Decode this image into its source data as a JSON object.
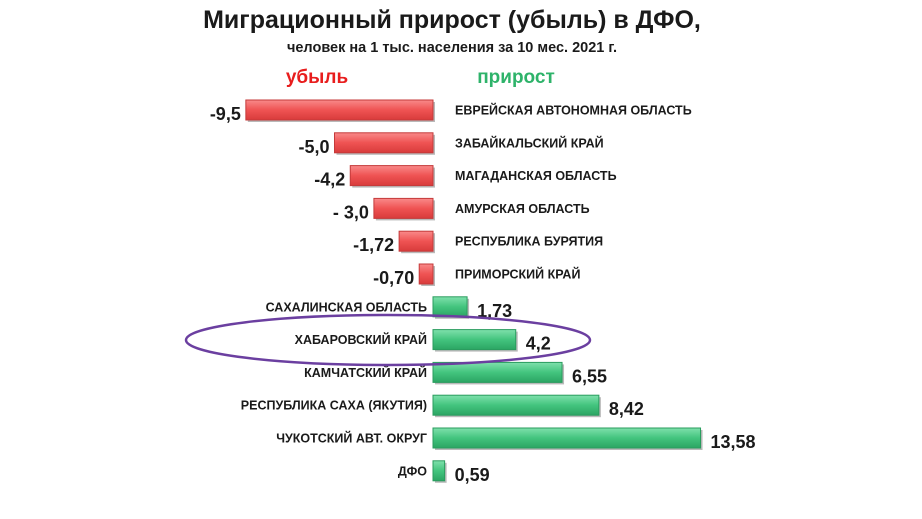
{
  "chart_data": {
    "type": "bar",
    "orientation": "horizontal",
    "title": "Миграционный прирост (убыль) в ДФО,",
    "subtitle": "человек на 1 тыс. населения за 10 мес. 2021 г.",
    "legend": {
      "negative": "убыль",
      "positive": "прирост"
    },
    "categories": [
      "ЕВРЕЙСКАЯ АВТОНОМНАЯ ОБЛАСТЬ",
      "ЗАБАЙКАЛЬСКИЙ КРАЙ",
      "МАГАДАНСКАЯ ОБЛАСТЬ",
      "АМУРСКАЯ ОБЛАСТЬ",
      "РЕСПУБЛИКА БУРЯТИЯ",
      "ПРИМОРСКИЙ КРАЙ",
      "САХАЛИНСКАЯ ОБЛАСТЬ",
      "ХАБАРОВСКИЙ КРАЙ",
      "КАМЧАТСКИЙ КРАЙ",
      "РЕСПУБЛИКА САХА (ЯКУТИЯ)",
      "ЧУКОТСКИЙ АВТ. ОКРУГ",
      "ДФО"
    ],
    "values": [
      -9.5,
      -5.0,
      -4.2,
      -3.0,
      -1.72,
      -0.7,
      1.73,
      4.2,
      6.55,
      8.42,
      13.58,
      0.59
    ],
    "data_labels": [
      "-9,5",
      "-5,0",
      "-4,2",
      "- 3,0",
      "-1,72",
      "-0,70",
      "1,73",
      "4,2",
      "6,55",
      "8,42",
      "13,58",
      "0,59"
    ],
    "highlighted": "ХАБАРОВСКИЙ КРАЙ",
    "colors": {
      "negative_fill": "#f25f5f",
      "negative_stroke": "#c43a3a",
      "positive_fill": "#4ccd88",
      "positive_stroke": "#2a9c5e",
      "highlight_ring": "#6b3fa0",
      "legend_negative": "#e81d1d",
      "legend_positive": "#2eb36a"
    },
    "grid": false
  }
}
